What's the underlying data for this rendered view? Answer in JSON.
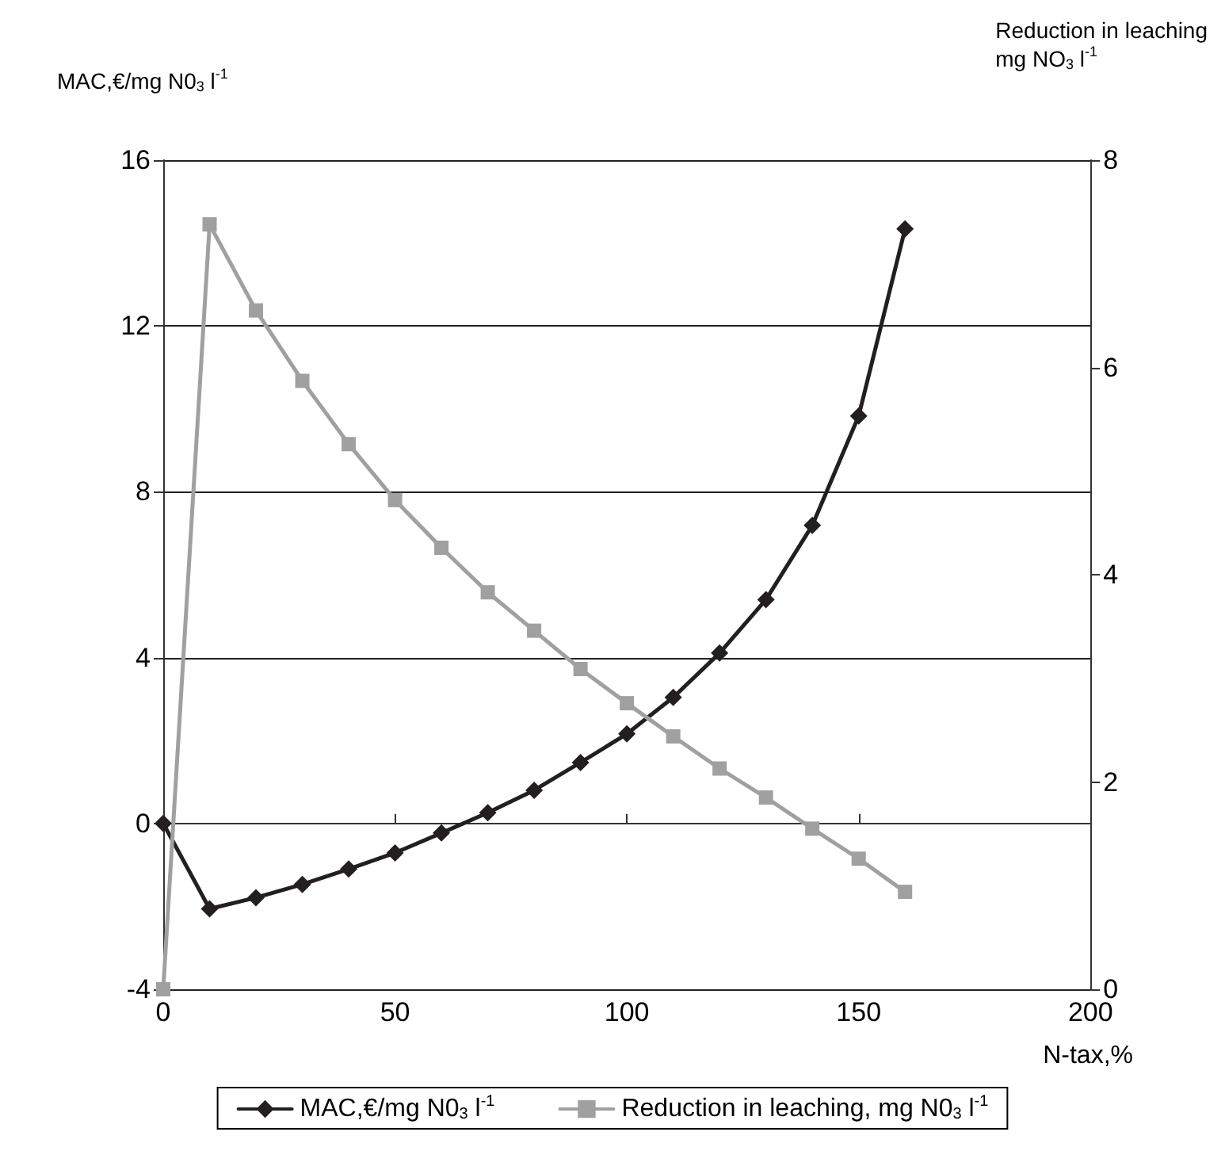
{
  "chart_data": {
    "type": "line",
    "x": [
      0,
      10,
      20,
      30,
      40,
      50,
      60,
      70,
      80,
      90,
      100,
      110,
      120,
      130,
      140,
      150,
      160
    ],
    "series": [
      {
        "name": "MAC,€/mg N0$_{3}$ l$^{-1}$",
        "color": "#231f20",
        "marker": "diamond",
        "values": [
          0,
          -2.06,
          -1.79,
          -1.47,
          -1.1,
          -0.71,
          -0.23,
          0.26,
          0.8,
          1.47,
          2.16,
          3.04,
          4.11,
          5.4,
          7.19,
          9.83,
          14.34
        ]
      },
      {
        "name": "Reduction in leaching, mg N0$_{3}$ l$^{-1}$",
        "color": "#a0a0a0",
        "marker": "square",
        "axis": "y2",
        "values": [
          0,
          7.38,
          6.55,
          5.87,
          5.26,
          4.72,
          4.26,
          3.83,
          3.46,
          3.09,
          2.76,
          2.44,
          2.13,
          1.85,
          1.55,
          1.26,
          0.94
        ]
      }
    ],
    "xlabel": "N-tax,%",
    "ylabel": "MAC,€/mg N0$_{3}$ l$^{-1}$",
    "y2label": "Reduction in leaching\nmg NO$_{3}$ l$^{-1}$",
    "xlim": [
      0,
      200
    ],
    "xticks": [
      0,
      50,
      100,
      150,
      200
    ],
    "ylim": [
      -4,
      16
    ],
    "yticks": [
      -4,
      0,
      4,
      8,
      12,
      16
    ],
    "y2lim": [
      0,
      8
    ],
    "y2ticks": [
      0,
      2,
      4,
      6,
      8
    ],
    "grid": "y",
    "legend": "bottom",
    "line_style": "solid"
  }
}
